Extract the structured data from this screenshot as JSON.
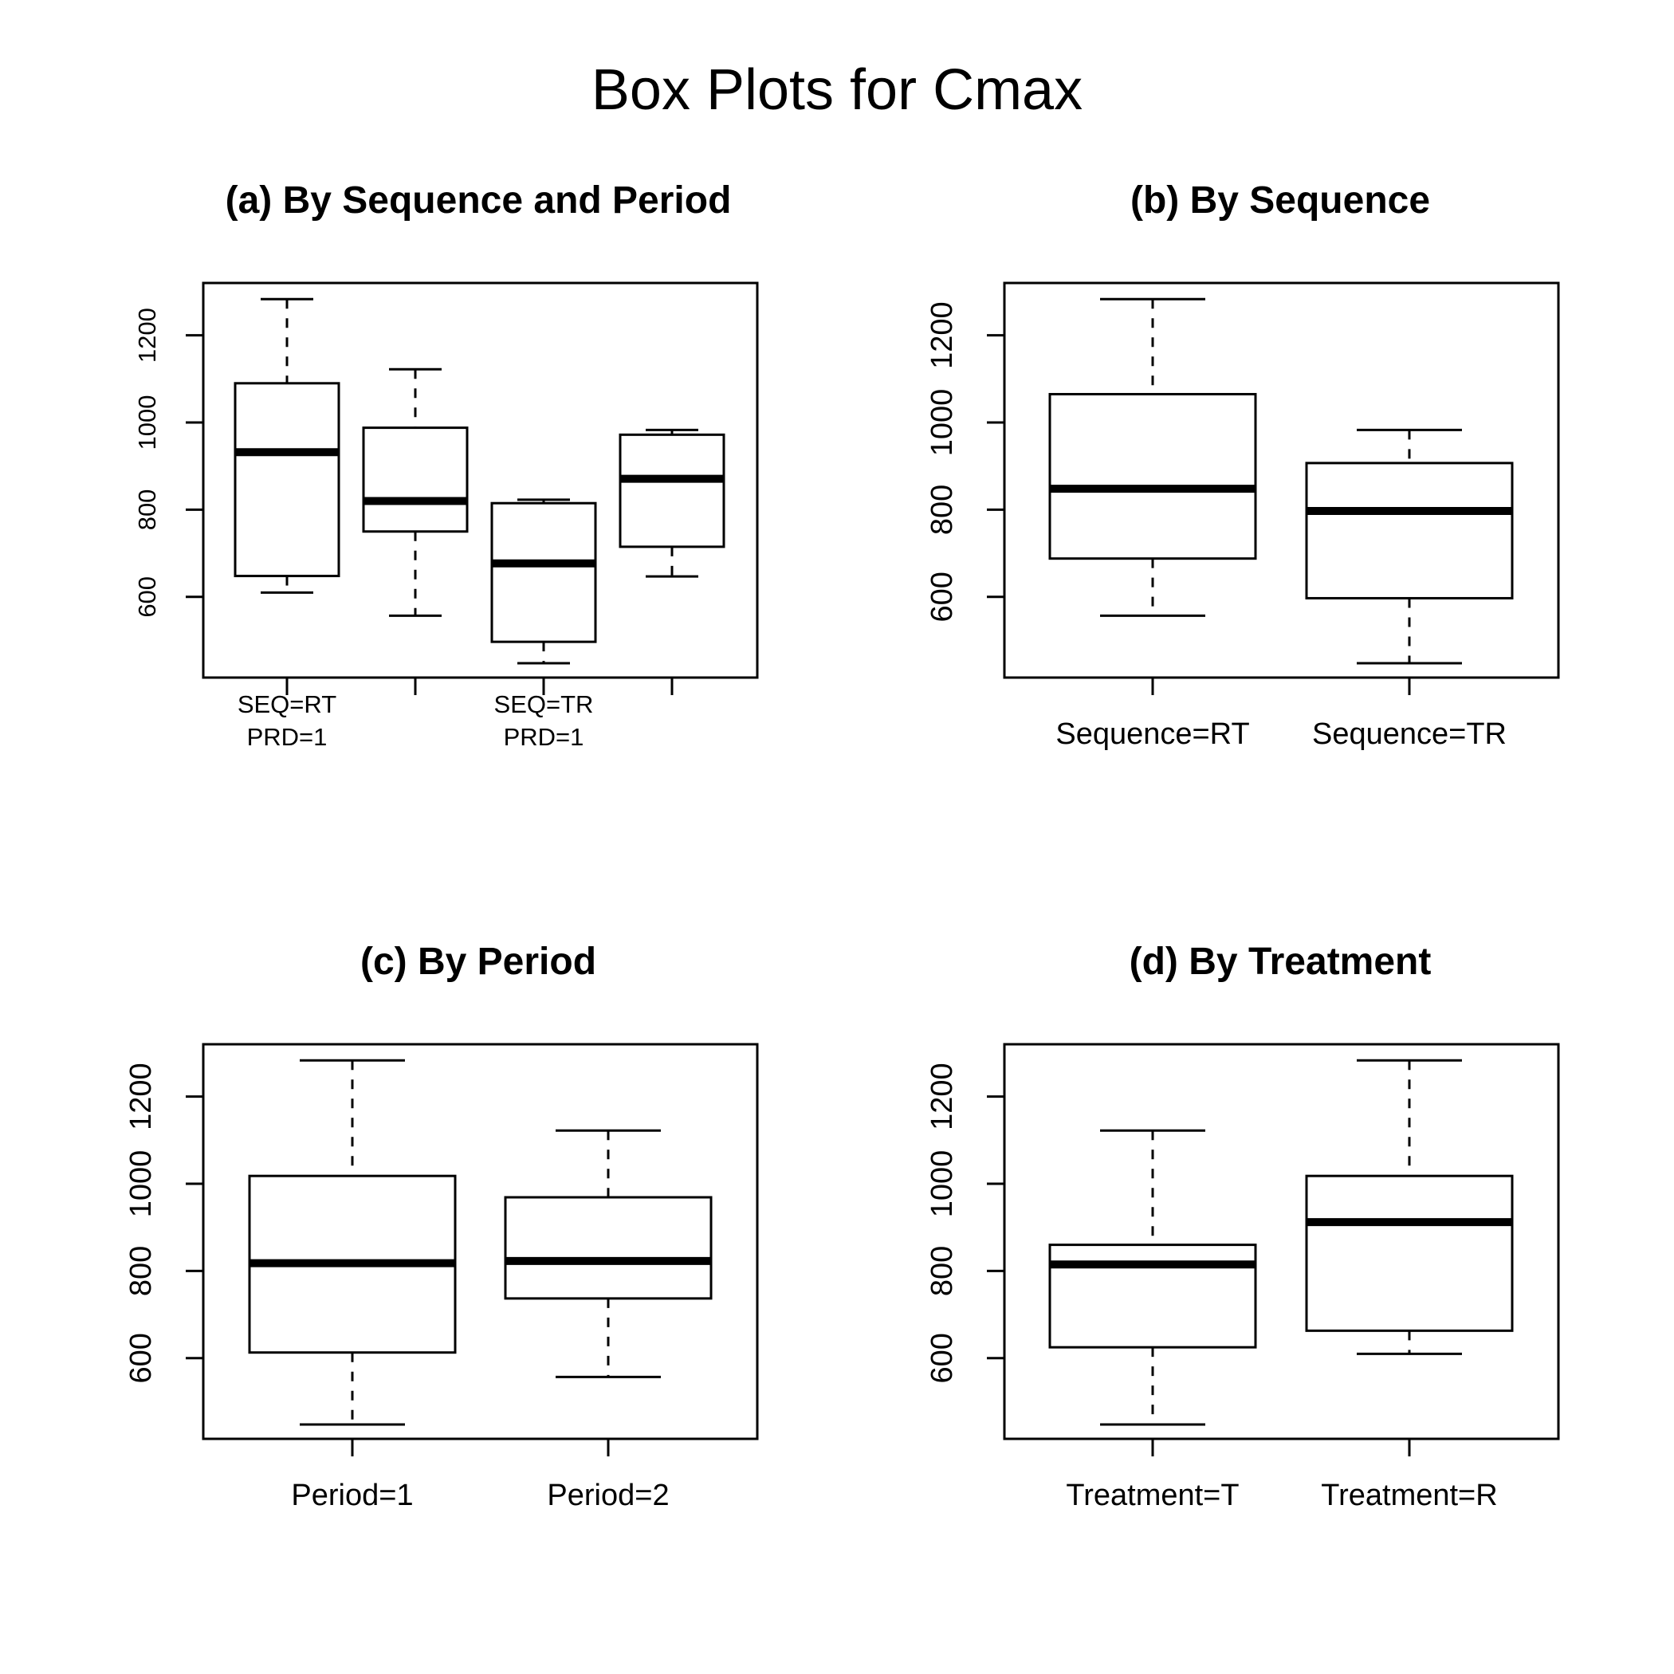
{
  "figure": {
    "title": "Box Plots for Cmax"
  },
  "chart_data": [
    {
      "type": "box",
      "title": "(a) By Sequence and Period",
      "xlabel": "",
      "ylabel": "",
      "ylim": [
        415,
        1320
      ],
      "yticks": [
        600,
        800,
        1000,
        1200
      ],
      "grid": false,
      "legend": "none",
      "boxes": [
        {
          "label_lines": [
            "SEQ=RT",
            "PRD=1"
          ],
          "whisker_low": 610,
          "q1": 648,
          "median": 932,
          "q3": 1090,
          "whisker_high": 1283
        },
        {
          "label_lines": [],
          "whisker_low": 557,
          "q1": 750,
          "median": 820,
          "q3": 988,
          "whisker_high": 1122
        },
        {
          "label_lines": [
            "SEQ=TR",
            "PRD=1"
          ],
          "whisker_low": 448,
          "q1": 497,
          "median": 677,
          "q3": 815,
          "whisker_high": 823
        },
        {
          "label_lines": [],
          "whisker_low": 647,
          "q1": 715,
          "median": 871,
          "q3": 972,
          "whisker_high": 983
        }
      ]
    },
    {
      "type": "box",
      "title": "(b) By Sequence",
      "xlabel": "",
      "ylabel": "",
      "ylim": [
        415,
        1320
      ],
      "yticks": [
        600,
        800,
        1000,
        1200
      ],
      "grid": false,
      "legend": "none",
      "boxes": [
        {
          "label_lines": [
            "Sequence=RT"
          ],
          "whisker_low": 557,
          "q1": 688,
          "median": 848,
          "q3": 1065,
          "whisker_high": 1283
        },
        {
          "label_lines": [
            "Sequence=TR"
          ],
          "whisker_low": 448,
          "q1": 597,
          "median": 797,
          "q3": 907,
          "whisker_high": 983
        }
      ]
    },
    {
      "type": "box",
      "title": "(c) By Period",
      "xlabel": "",
      "ylabel": "",
      "ylim": [
        415,
        1320
      ],
      "yticks": [
        600,
        800,
        1000,
        1200
      ],
      "grid": false,
      "legend": "none",
      "boxes": [
        {
          "label_lines": [
            "Period=1"
          ],
          "whisker_low": 448,
          "q1": 613,
          "median": 818,
          "q3": 1018,
          "whisker_high": 1283
        },
        {
          "label_lines": [
            "Period=2"
          ],
          "whisker_low": 557,
          "q1": 737,
          "median": 823,
          "q3": 969,
          "whisker_high": 1122
        }
      ]
    },
    {
      "type": "box",
      "title": "(d) By Treatment",
      "xlabel": "",
      "ylabel": "",
      "ylim": [
        415,
        1320
      ],
      "yticks": [
        600,
        800,
        1000,
        1200
      ],
      "grid": false,
      "legend": "none",
      "boxes": [
        {
          "label_lines": [
            "Treatment=T"
          ],
          "whisker_low": 448,
          "q1": 625,
          "median": 815,
          "q3": 860,
          "whisker_high": 1122
        },
        {
          "label_lines": [
            "Treatment=R"
          ],
          "whisker_low": 610,
          "q1": 663,
          "median": 912,
          "q3": 1018,
          "whisker_high": 1283
        }
      ]
    }
  ]
}
